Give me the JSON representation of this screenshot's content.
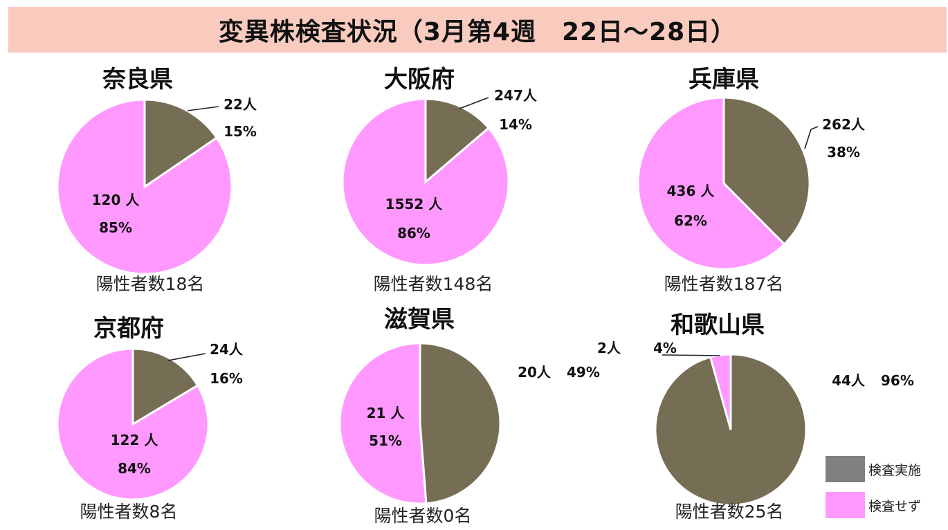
{
  "title": "変異株検査状況（3月第4週　22日～28日）",
  "colors": {
    "tested": "#756e55",
    "untested": "#ff99ff",
    "legend_tested": "#808080"
  },
  "legend": [
    {
      "label": "検査実施",
      "key": "tested"
    },
    {
      "label": "検査せず",
      "key": "untested"
    }
  ],
  "chart_data": [
    {
      "type": "pie",
      "title": "奈良県",
      "footer": "陽性者数18名",
      "slices": [
        {
          "name": "検査実施",
          "value": 22,
          "count_label": "22人",
          "percent": "15%"
        },
        {
          "name": "検査せず",
          "value": 120,
          "count_label": "120 人",
          "percent": "85%"
        }
      ]
    },
    {
      "type": "pie",
      "title": "大阪府",
      "footer": "陽性者数148名",
      "slices": [
        {
          "name": "検査実施",
          "value": 247,
          "count_label": "247人",
          "percent": "14%"
        },
        {
          "name": "検査せず",
          "value": 1552,
          "count_label": "1552 人",
          "percent": "86%"
        }
      ]
    },
    {
      "type": "pie",
      "title": "兵庫県",
      "footer": "陽性者数187名",
      "slices": [
        {
          "name": "検査実施",
          "value": 262,
          "count_label": "262人",
          "percent": "38%"
        },
        {
          "name": "検査せず",
          "value": 436,
          "count_label": "436 人",
          "percent": "62%"
        }
      ]
    },
    {
      "type": "pie",
      "title": "京都府",
      "footer": "陽性者数8名",
      "slices": [
        {
          "name": "検査実施",
          "value": 24,
          "count_label": "24人",
          "percent": "16%"
        },
        {
          "name": "検査せず",
          "value": 122,
          "count_label": "122 人",
          "percent": "84%"
        }
      ]
    },
    {
      "type": "pie",
      "title": "滋賀県",
      "footer": "陽性者数0名",
      "slices": [
        {
          "name": "検査実施",
          "value": 20,
          "count_label": "20人",
          "percent": "49%"
        },
        {
          "name": "検査せず",
          "value": 21,
          "count_label": "21 人",
          "percent": "51%"
        }
      ]
    },
    {
      "type": "pie",
      "title": "和歌山県",
      "footer": "陽性者数25名",
      "slices": [
        {
          "name": "検査実施",
          "value": 44,
          "count_label": "44人",
          "percent": "96%"
        },
        {
          "name": "検査せず",
          "value": 2,
          "count_label": "2人",
          "percent": "4%"
        }
      ]
    }
  ]
}
